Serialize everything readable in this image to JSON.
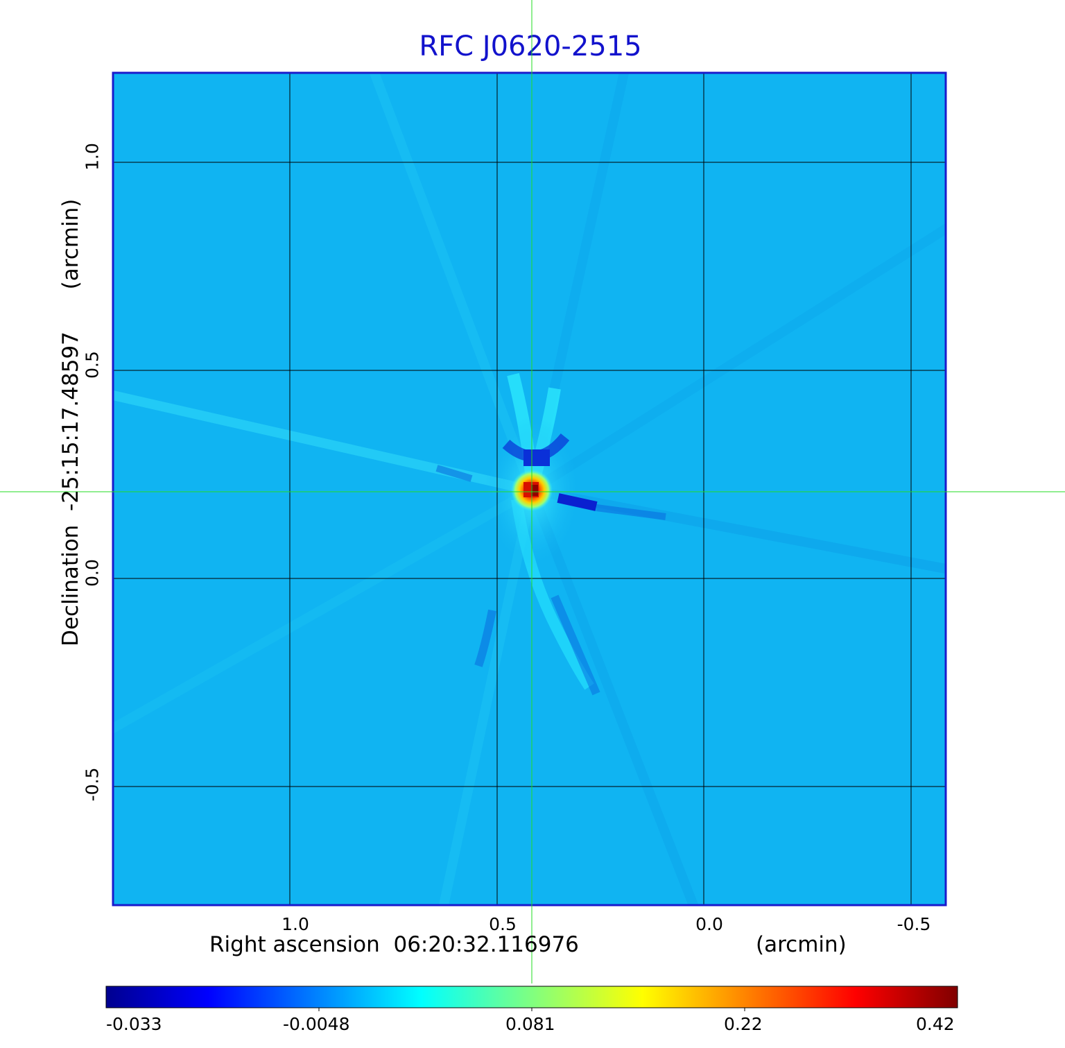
{
  "title": "RFC J0620-2515",
  "x_axis": {
    "label": "Right ascension  06:20:32.116976",
    "unit": "(arcmin)",
    "ticks": [
      "1.0",
      "0.5",
      "0.0",
      "-0.5"
    ]
  },
  "y_axis": {
    "label": "Declination  -25:15:17.48597",
    "unit": "(arcmin)",
    "ticks": [
      "1.0",
      "0.5",
      "0.0",
      "-0.5"
    ]
  },
  "colorbar": {
    "ticks": [
      "-0.033",
      "-0.0048",
      "0.081",
      "0.22",
      "0.42"
    ],
    "colormap": "jet"
  },
  "colors": {
    "title": "#1212cc",
    "frame": "#1a1acc",
    "crosshair": "#22dd22",
    "background_field": "#10b4f2"
  }
}
